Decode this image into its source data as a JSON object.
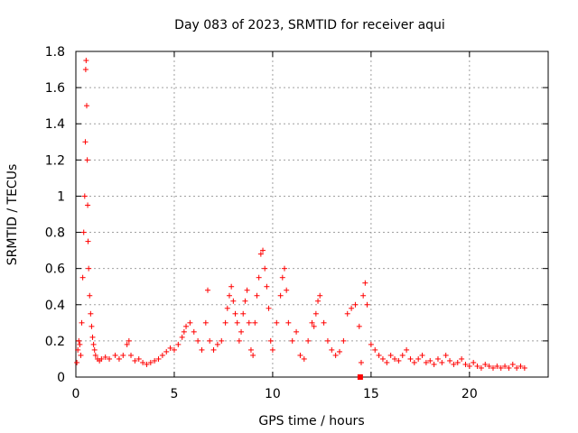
{
  "chart_data": {
    "type": "scatter",
    "title": "Day 083 of 2023, SRMTID for receiver aqui",
    "xlabel": "GPS time / hours",
    "ylabel": "SRMTID / TECUs",
    "xlim": [
      0,
      24
    ],
    "ylim": [
      0,
      1.8
    ],
    "xticks": [
      0,
      5,
      10,
      15,
      20
    ],
    "yticks": [
      0,
      0.2,
      0.4,
      0.6,
      0.8,
      1,
      1.2,
      1.4,
      1.6,
      1.8
    ],
    "xtick_labels": [
      "0",
      "5",
      "10",
      "15",
      "20"
    ],
    "ytick_labels": [
      "0",
      "0.2",
      "0.4",
      "0.6",
      "0.8",
      "1",
      "1.2",
      "1.4",
      "1.6",
      "1.8"
    ],
    "grid": true,
    "marker": "+",
    "marker_color": "#ff0000",
    "series": [
      {
        "name": "SRMTID",
        "x": [
          0.05,
          0.1,
          0.15,
          0.2,
          0.25,
          0.3,
          0.35,
          0.4,
          0.45,
          0.48,
          0.5,
          0.52,
          0.55,
          0.58,
          0.6,
          0.62,
          0.65,
          0.7,
          0.75,
          0.8,
          0.85,
          0.9,
          0.95,
          1.0,
          1.1,
          1.2,
          1.3,
          1.5,
          1.7,
          2.0,
          2.2,
          2.4,
          2.6,
          2.7,
          2.8,
          3.0,
          3.2,
          3.4,
          3.6,
          3.8,
          4.0,
          4.2,
          4.4,
          4.6,
          4.8,
          5.0,
          5.2,
          5.4,
          5.5,
          5.6,
          5.8,
          6.0,
          6.2,
          6.4,
          6.6,
          6.7,
          6.8,
          7.0,
          7.2,
          7.4,
          7.6,
          7.7,
          7.8,
          7.9,
          8.0,
          8.1,
          8.2,
          8.3,
          8.4,
          8.5,
          8.6,
          8.7,
          8.8,
          8.9,
          9.0,
          9.1,
          9.2,
          9.3,
          9.4,
          9.5,
          9.6,
          9.7,
          9.8,
          9.9,
          10.0,
          10.2,
          10.4,
          10.5,
          10.6,
          10.7,
          10.8,
          11.0,
          11.2,
          11.4,
          11.6,
          11.8,
          12.0,
          12.1,
          12.2,
          12.3,
          12.4,
          12.6,
          12.8,
          13.0,
          13.2,
          13.4,
          13.6,
          13.8,
          14.0,
          14.2,
          14.4,
          14.5,
          14.6,
          14.7,
          14.8,
          15.0,
          15.2,
          15.4,
          15.6,
          15.8,
          16.0,
          16.2,
          16.4,
          16.6,
          16.8,
          17.0,
          17.2,
          17.4,
          17.6,
          17.8,
          18.0,
          18.2,
          18.4,
          18.6,
          18.8,
          19.0,
          19.2,
          19.4,
          19.6,
          19.8,
          20.0,
          20.2,
          20.4,
          20.6,
          20.8,
          21.0,
          21.2,
          21.4,
          21.6,
          21.8,
          22.0,
          22.2,
          22.4,
          22.6,
          22.8
        ],
        "y": [
          0.08,
          0.15,
          0.2,
          0.18,
          0.12,
          0.3,
          0.55,
          0.8,
          1.0,
          1.3,
          1.7,
          1.75,
          1.5,
          1.2,
          0.95,
          0.75,
          0.6,
          0.45,
          0.35,
          0.28,
          0.22,
          0.18,
          0.15,
          0.12,
          0.1,
          0.09,
          0.1,
          0.11,
          0.1,
          0.12,
          0.1,
          0.12,
          0.18,
          0.2,
          0.12,
          0.09,
          0.1,
          0.08,
          0.07,
          0.08,
          0.09,
          0.1,
          0.12,
          0.14,
          0.16,
          0.15,
          0.18,
          0.22,
          0.25,
          0.28,
          0.3,
          0.25,
          0.2,
          0.15,
          0.3,
          0.48,
          0.2,
          0.15,
          0.18,
          0.2,
          0.3,
          0.38,
          0.45,
          0.5,
          0.42,
          0.35,
          0.3,
          0.2,
          0.25,
          0.35,
          0.42,
          0.48,
          0.3,
          0.15,
          0.12,
          0.3,
          0.45,
          0.55,
          0.68,
          0.7,
          0.6,
          0.5,
          0.38,
          0.2,
          0.15,
          0.3,
          0.45,
          0.55,
          0.6,
          0.48,
          0.3,
          0.2,
          0.25,
          0.12,
          0.1,
          0.2,
          0.3,
          0.28,
          0.35,
          0.42,
          0.45,
          0.3,
          0.2,
          0.15,
          0.12,
          0.14,
          0.2,
          0.35,
          0.38,
          0.4,
          0.28,
          0.08,
          0.45,
          0.52,
          0.4,
          0.18,
          0.15,
          0.12,
          0.1,
          0.08,
          0.12,
          0.1,
          0.09,
          0.12,
          0.15,
          0.1,
          0.08,
          0.1,
          0.12,
          0.08,
          0.09,
          0.07,
          0.1,
          0.08,
          0.12,
          0.09,
          0.07,
          0.08,
          0.1,
          0.07,
          0.06,
          0.08,
          0.06,
          0.05,
          0.07,
          0.06,
          0.05,
          0.06,
          0.05,
          0.06,
          0.05,
          0.07,
          0.05,
          0.06,
          0.05
        ]
      }
    ],
    "annotations": [
      {
        "type": "square-marker",
        "x": 14.45,
        "y": 0.0
      }
    ]
  }
}
